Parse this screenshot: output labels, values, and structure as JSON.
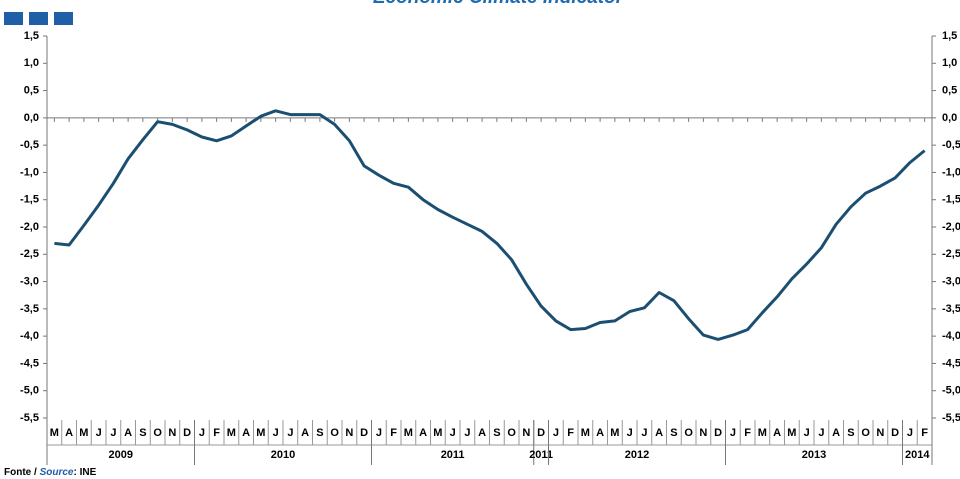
{
  "chart_data": {
    "type": "line",
    "title": "Economic Climate Indicator",
    "categories": [
      "M",
      "A",
      "M",
      "J",
      "J",
      "A",
      "S",
      "O",
      "N",
      "D",
      "J",
      "F",
      "M",
      "A",
      "M",
      "J",
      "J",
      "A",
      "S",
      "O",
      "N",
      "D",
      "J",
      "F",
      "M",
      "A",
      "M",
      "J",
      "J",
      "A",
      "S",
      "O",
      "N",
      "D",
      "J",
      "F",
      "M",
      "A",
      "M",
      "J",
      "J",
      "A",
      "S",
      "O",
      "N",
      "D",
      "J",
      "F",
      "M",
      "A",
      "M",
      "J",
      "J",
      "A",
      "S",
      "O",
      "N",
      "D",
      "J",
      "F"
    ],
    "years": [
      "2009",
      null,
      null,
      null,
      null,
      null,
      null,
      null,
      null,
      null,
      "2010",
      null,
      null,
      null,
      null,
      null,
      null,
      null,
      null,
      null,
      null,
      null,
      "2011",
      null,
      null,
      null,
      null,
      null,
      null,
      null,
      null,
      null,
      null,
      "2011",
      "2012",
      null,
      null,
      null,
      null,
      null,
      null,
      null,
      null,
      null,
      null,
      null,
      "2013",
      null,
      null,
      null,
      null,
      null,
      null,
      null,
      null,
      null,
      null,
      null,
      "2014",
      null
    ],
    "series": [
      {
        "name": "Economic Climate Indicator",
        "color": "#1b4f72",
        "values": [
          -2.3,
          -2.33,
          -1.97,
          -1.6,
          -1.2,
          -0.75,
          -0.4,
          -0.07,
          -0.12,
          -0.22,
          -0.35,
          -0.42,
          -0.33,
          -0.15,
          0.03,
          0.13,
          0.06,
          0.06,
          0.06,
          -0.12,
          -0.42,
          -0.88,
          -1.05,
          -1.2,
          -1.27,
          -1.5,
          -1.68,
          -1.82,
          -1.95,
          -2.08,
          -2.3,
          -2.6,
          -3.05,
          -3.45,
          -3.72,
          -3.88,
          -3.86,
          -3.75,
          -3.72,
          -3.55,
          -3.48,
          -3.2,
          -3.35,
          -3.68,
          -3.98,
          -4.06,
          -3.98,
          -3.88,
          -3.57,
          -3.28,
          -2.95,
          -2.68,
          -2.38,
          -1.95,
          -1.63,
          -1.38,
          -1.25,
          -1.1,
          -0.82,
          -0.6
        ]
      }
    ],
    "ylim": [
      -5.5,
      1.5
    ],
    "yticks": [
      {
        "value": 1.5,
        "label": "1,5"
      },
      {
        "value": 1,
        "label": "1,0"
      },
      {
        "value": 0.5,
        "label": "0,5"
      },
      {
        "value": 0,
        "label": "0,0"
      },
      {
        "value": -0.5,
        "label": "-0,5"
      },
      {
        "value": -1,
        "label": "-1,0"
      },
      {
        "value": -1.5,
        "label": "-1,5"
      },
      {
        "value": -2,
        "label": "-2,0"
      },
      {
        "value": -2.5,
        "label": "-2,5"
      },
      {
        "value": -3,
        "label": "-3,0"
      },
      {
        "value": -3.5,
        "label": "-3,5"
      },
      {
        "value": -4,
        "label": "-4,0"
      },
      {
        "value": -4.5,
        "label": "-4,5"
      },
      {
        "value": -5,
        "label": "-5,0"
      },
      {
        "value": -5.5,
        "label": "-5,5"
      }
    ],
    "source": [
      "Fonte /",
      "Source",
      ": INE"
    ]
  }
}
